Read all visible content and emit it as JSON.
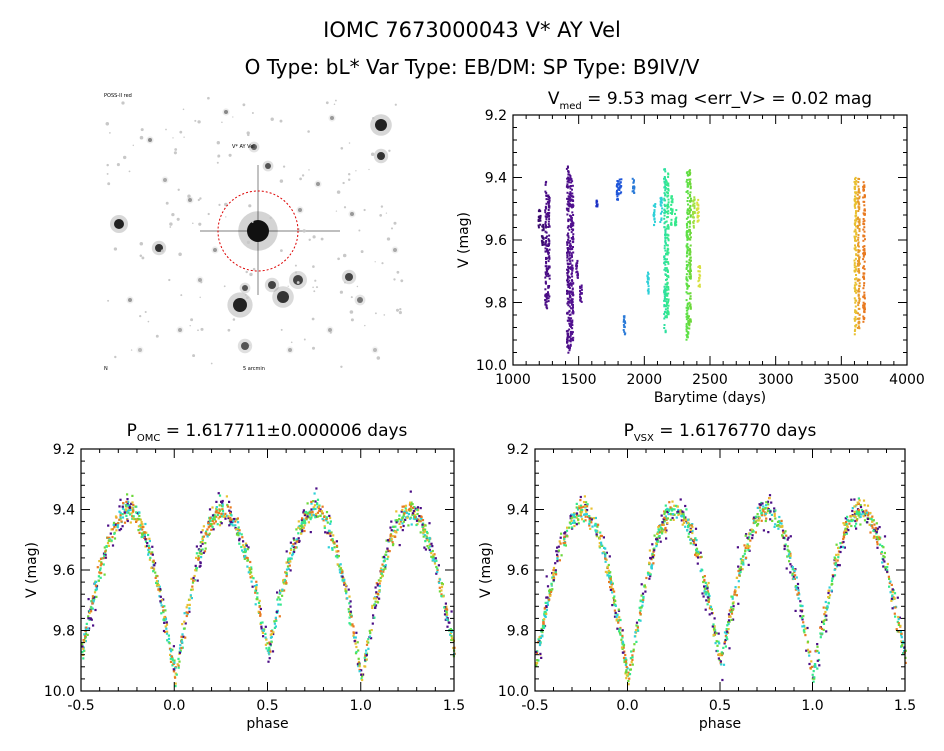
{
  "header": {
    "title_line1": "IOMC 7673000043    V* AY Vel",
    "title_line2": "O Type: bL*   Var Type: EB/DM:   SP Type: B9IV/V"
  },
  "finder": {
    "caption_top_left": "POSS-II red",
    "caption_bottom": "5 arcmin",
    "caption_bottom_left": "N",
    "marker_label": "V* AY Vel",
    "marker_color": "#dd0000"
  },
  "chart_data": [
    {
      "type": "scatter",
      "title_prefix": "V",
      "title_sub": "med",
      "title_rest": " = 9.53 mag <err_V> = 0.02 mag",
      "xlabel": "Barytime (days)",
      "ylabel": "V (mag)",
      "xlim": [
        1000,
        4000
      ],
      "ylim": [
        10.0,
        9.2
      ],
      "y_inverted": true,
      "xticks": [
        "1000",
        "1500",
        "2000",
        "2500",
        "3000",
        "3500",
        "4000"
      ],
      "yticks": [
        "9.2",
        "9.4",
        "9.6",
        "9.8",
        "10.0"
      ],
      "segments": [
        {
          "x": 1195,
          "ymin": 9.5,
          "ymax": 9.56,
          "color": "#3a0a6e"
        },
        {
          "x": 1220,
          "ymin": 9.54,
          "ymax": 9.62,
          "color": "#3a0a6e"
        },
        {
          "x": 1245,
          "ymin": 9.41,
          "ymax": 9.82,
          "color": "#4a0d85"
        },
        {
          "x": 1265,
          "ymin": 9.45,
          "ymax": 9.8,
          "color": "#4a0d85"
        },
        {
          "x": 1410,
          "ymin": 9.36,
          "ymax": 9.96,
          "color": "#4a0d85"
        },
        {
          "x": 1428,
          "ymin": 9.38,
          "ymax": 9.95,
          "color": "#51108f"
        },
        {
          "x": 1445,
          "ymin": 9.4,
          "ymax": 9.92,
          "color": "#51108f"
        },
        {
          "x": 1480,
          "ymin": 9.66,
          "ymax": 9.72,
          "color": "#51108f"
        },
        {
          "x": 1510,
          "ymin": 9.74,
          "ymax": 9.8,
          "color": "#51108f"
        },
        {
          "x": 1630,
          "ymin": 9.47,
          "ymax": 9.49,
          "color": "#1a2fc4"
        },
        {
          "x": 1790,
          "ymin": 9.4,
          "ymax": 9.47,
          "color": "#1f56d9"
        },
        {
          "x": 1810,
          "ymin": 9.4,
          "ymax": 9.45,
          "color": "#1f56d9"
        },
        {
          "x": 1840,
          "ymin": 9.84,
          "ymax": 9.9,
          "color": "#2a7ad8"
        },
        {
          "x": 1910,
          "ymin": 9.4,
          "ymax": 9.45,
          "color": "#2a7ad8"
        },
        {
          "x": 2020,
          "ymin": 9.7,
          "ymax": 9.77,
          "color": "#2fd0d8"
        },
        {
          "x": 2070,
          "ymin": 9.48,
          "ymax": 9.55,
          "color": "#2fd0d8"
        },
        {
          "x": 2120,
          "ymin": 9.46,
          "ymax": 9.54,
          "color": "#2fd0d8"
        },
        {
          "x": 2150,
          "ymin": 9.37,
          "ymax": 9.9,
          "color": "#2fe0a0"
        },
        {
          "x": 2170,
          "ymin": 9.38,
          "ymax": 9.85,
          "color": "#35e88c"
        },
        {
          "x": 2200,
          "ymin": 9.45,
          "ymax": 9.55,
          "color": "#35e88c"
        },
        {
          "x": 2230,
          "ymin": 9.5,
          "ymax": 9.55,
          "color": "#35e88c"
        },
        {
          "x": 2320,
          "ymin": 9.37,
          "ymax": 9.92,
          "color": "#5de046"
        },
        {
          "x": 2340,
          "ymin": 9.37,
          "ymax": 9.88,
          "color": "#6cd83a"
        },
        {
          "x": 2370,
          "ymin": 9.45,
          "ymax": 9.56,
          "color": "#9fe042"
        },
        {
          "x": 2400,
          "ymin": 9.46,
          "ymax": 9.54,
          "color": "#d8e040"
        },
        {
          "x": 2410,
          "ymin": 9.68,
          "ymax": 9.75,
          "color": "#d8e040"
        },
        {
          "x": 3600,
          "ymin": 9.38,
          "ymax": 9.9,
          "color": "#e8c030"
        },
        {
          "x": 3625,
          "ymin": 9.4,
          "ymax": 9.88,
          "color": "#e89a28"
        },
        {
          "x": 3665,
          "ymin": 9.4,
          "ymax": 9.86,
          "color": "#e87a20"
        }
      ]
    },
    {
      "type": "scatter",
      "title_prefix": "P",
      "title_sub": "OMC",
      "title_rest": " = 1.617711±0.000006 days",
      "xlabel": "phase",
      "ylabel": "V (mag)",
      "xlim": [
        -0.5,
        1.5
      ],
      "ylim": [
        10.0,
        9.2
      ],
      "y_inverted": true,
      "xticks": [
        "-0.5",
        "0.0",
        "0.5",
        "1.0",
        "1.5"
      ],
      "yticks": [
        "9.2",
        "9.4",
        "9.6",
        "9.8",
        "10.0"
      ],
      "model": {
        "maximum": 9.4,
        "primary_min": 9.95,
        "secondary_min": 9.87,
        "primary_phase": 0.0,
        "secondary_phase": 0.5
      },
      "series_colors": [
        "#4a0d85",
        "#2fd0d8",
        "#35e88c",
        "#6cd83a",
        "#e8c030",
        "#e87a20"
      ]
    },
    {
      "type": "scatter",
      "title_prefix": "P",
      "title_sub": "VSX",
      "title_rest": " = 1.6176770 days",
      "xlabel": "phase",
      "ylabel": "V (mag)",
      "xlim": [
        -0.5,
        1.5
      ],
      "ylim": [
        10.0,
        9.2
      ],
      "y_inverted": true,
      "xticks": [
        "-0.5",
        "0.0",
        "0.5",
        "1.0",
        "1.5"
      ],
      "yticks": [
        "9.2",
        "9.4",
        "9.6",
        "9.8",
        "10.0"
      ],
      "model": {
        "maximum": 9.4,
        "primary_min": 9.95,
        "secondary_min": 9.9,
        "primary_phase": 0.0,
        "secondary_phase": 0.5
      },
      "series_colors": [
        "#4a0d85",
        "#2fd0d8",
        "#35e88c",
        "#6cd83a",
        "#e8c030",
        "#e87a20"
      ]
    }
  ]
}
